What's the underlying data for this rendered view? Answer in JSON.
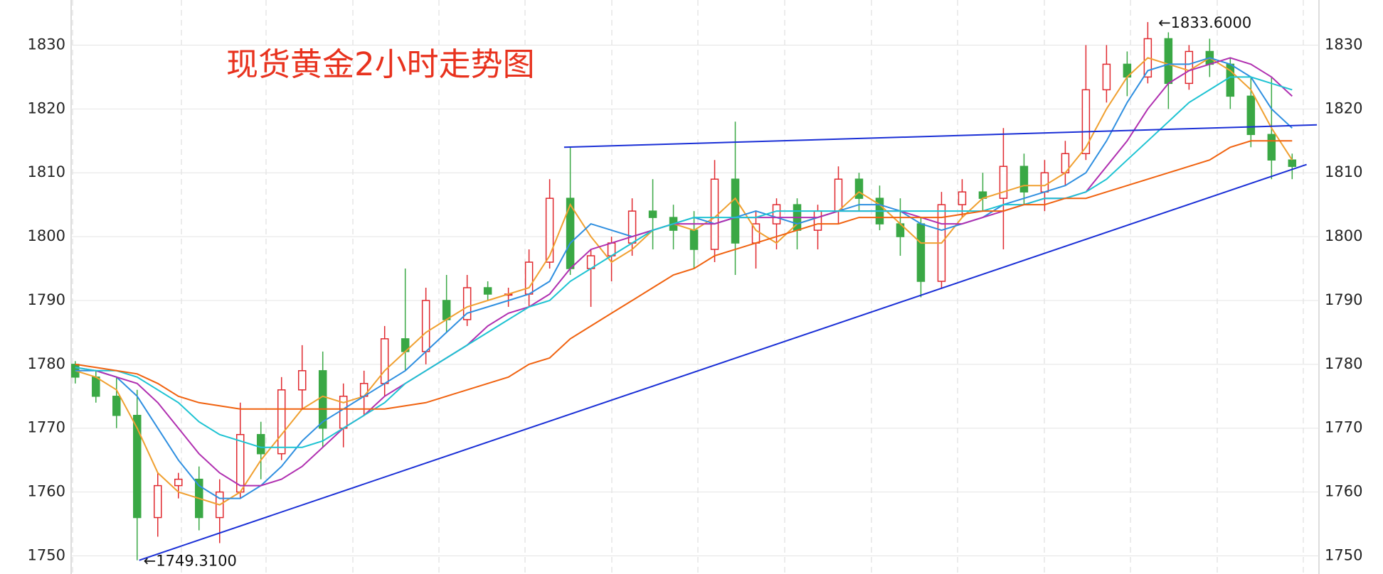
{
  "chart_data": {
    "type": "candlestick",
    "title": "现货黄金2小时走势图",
    "ylim": [
      1747.16,
      1837.06
    ],
    "yticks": [
      1750,
      1760,
      1770,
      1780,
      1790,
      1800,
      1810,
      1820,
      1830
    ],
    "xlim": [
      -0.2,
      60.3
    ],
    "grid": true,
    "up_color": "#e0282e",
    "down_color": "#3aa845",
    "candles": [
      [
        1780,
        1780.5,
        1777,
        1778
      ],
      [
        1778,
        1779,
        1774,
        1775
      ],
      [
        1775,
        1778,
        1770,
        1772
      ],
      [
        1772,
        1776,
        1749.31,
        1756
      ],
      [
        1756,
        1763,
        1753,
        1761
      ],
      [
        1761,
        1763,
        1759,
        1762
      ],
      [
        1762,
        1764,
        1754,
        1756
      ],
      [
        1756,
        1762,
        1752,
        1760
      ],
      [
        1760,
        1774,
        1759,
        1769
      ],
      [
        1769,
        1771,
        1762,
        1766
      ],
      [
        1766,
        1778,
        1765,
        1776
      ],
      [
        1776,
        1783,
        1773,
        1779
      ],
      [
        1779,
        1782,
        1767,
        1770
      ],
      [
        1770,
        1777,
        1767,
        1775
      ],
      [
        1775,
        1779,
        1772,
        1777
      ],
      [
        1777,
        1786,
        1775,
        1784
      ],
      [
        1784,
        1795,
        1779,
        1782
      ],
      [
        1782,
        1792,
        1780,
        1790
      ],
      [
        1790,
        1794,
        1785,
        1787
      ],
      [
        1787,
        1794,
        1786,
        1792
      ],
      [
        1792,
        1793,
        1790,
        1791
      ],
      [
        1791,
        1792,
        1789,
        1791
      ],
      [
        1791,
        1798,
        1789,
        1796
      ],
      [
        1796,
        1809,
        1795,
        1806
      ],
      [
        1806,
        1814,
        1794,
        1795
      ],
      [
        1795,
        1798,
        1789,
        1797
      ],
      [
        1797,
        1800,
        1793,
        1799
      ],
      [
        1799,
        1806,
        1797,
        1804
      ],
      [
        1804,
        1809,
        1798,
        1803
      ],
      [
        1803,
        1805,
        1798,
        1801
      ],
      [
        1801,
        1804,
        1795,
        1798
      ],
      [
        1798,
        1812,
        1796,
        1809
      ],
      [
        1809,
        1818,
        1794,
        1799
      ],
      [
        1799,
        1804,
        1795,
        1802
      ],
      [
        1802,
        1806,
        1798,
        1805
      ],
      [
        1805,
        1806,
        1798,
        1801
      ],
      [
        1801,
        1805,
        1798,
        1804
      ],
      [
        1804,
        1811,
        1802,
        1809
      ],
      [
        1809,
        1810,
        1804,
        1806
      ],
      [
        1806,
        1808,
        1801,
        1802
      ],
      [
        1802,
        1806,
        1797,
        1800
      ],
      [
        1802,
        1803,
        1790.5,
        1793
      ],
      [
        1793,
        1807,
        1792,
        1805
      ],
      [
        1805,
        1809,
        1803,
        1807
      ],
      [
        1807,
        1810,
        1804,
        1806
      ],
      [
        1806,
        1817,
        1798,
        1811
      ],
      [
        1811,
        1813,
        1805,
        1807
      ],
      [
        1807,
        1812,
        1804,
        1810
      ],
      [
        1810,
        1815,
        1808,
        1813
      ],
      [
        1813,
        1830,
        1812,
        1823
      ],
      [
        1823,
        1830,
        1821,
        1827
      ],
      [
        1827,
        1829,
        1822,
        1825
      ],
      [
        1825,
        1833.6,
        1824,
        1831
      ],
      [
        1831,
        1832,
        1820,
        1824
      ],
      [
        1824,
        1830,
        1823,
        1829
      ],
      [
        1829,
        1831,
        1825,
        1827
      ],
      [
        1827,
        1828,
        1820,
        1822
      ],
      [
        1822,
        1825,
        1814,
        1816
      ],
      [
        1816,
        1825,
        1809,
        1812
      ],
      [
        1812,
        1813,
        1809,
        1811
      ]
    ],
    "lines": [
      {
        "color": "#f0a030",
        "values": [
          1779,
          1778,
          1776,
          1770,
          1763,
          1760,
          1759,
          1758,
          1760,
          1765,
          1769,
          1773,
          1775,
          1774,
          1775,
          1779,
          1782,
          1785,
          1787,
          1789,
          1790,
          1791,
          1792,
          1797,
          1805,
          1800,
          1796,
          1798,
          1801,
          1802,
          1801,
          1803,
          1806,
          1801,
          1799,
          1802,
          1803,
          1804,
          1807,
          1805,
          1802,
          1799,
          1799,
          1803,
          1806,
          1807,
          1808,
          1808,
          1810,
          1814,
          1820,
          1825,
          1828,
          1827,
          1826,
          1828,
          1826,
          1823,
          1817,
          1812
        ]
      },
      {
        "color": "#2f8fe0",
        "values": [
          1779,
          1779,
          1778,
          1775,
          1770,
          1765,
          1761,
          1759,
          1759,
          1761,
          1764,
          1768,
          1771,
          1773,
          1775,
          1777,
          1779,
          1782,
          1785,
          1788,
          1789,
          1790,
          1791,
          1793,
          1799,
          1802,
          1801,
          1800,
          1801,
          1802,
          1803,
          1802,
          1803,
          1804,
          1803,
          1802,
          1803,
          1804,
          1805,
          1805,
          1804,
          1802,
          1801,
          1802,
          1803,
          1805,
          1806,
          1807,
          1808,
          1810,
          1815,
          1821,
          1826,
          1827,
          1827,
          1828,
          1827,
          1825,
          1820,
          1817
        ]
      },
      {
        "color": "#b02fb0",
        "values": [
          1779.5,
          1779,
          1778,
          1777,
          1774,
          1770,
          1766,
          1763,
          1761,
          1761,
          1762,
          1764,
          1767,
          1770,
          1772,
          1775,
          1777,
          1779,
          1781,
          1783,
          1786,
          1788,
          1789,
          1791,
          1795,
          1798,
          1799,
          1800,
          1801,
          1802,
          1802,
          1802,
          1803,
          1803,
          1803,
          1803,
          1803,
          1804,
          1804,
          1804,
          1804,
          1803,
          1802,
          1802,
          1803,
          1804,
          1805,
          1806,
          1806,
          1807,
          1811,
          1815,
          1820,
          1824,
          1826,
          1827,
          1828,
          1827,
          1825,
          1822
        ]
      },
      {
        "color": "#1ec3d2",
        "values": [
          1779.5,
          1779,
          1779,
          1778,
          1776,
          1774,
          1771,
          1769,
          1768,
          1767,
          1767,
          1767,
          1768,
          1770,
          1772,
          1774,
          1777,
          1779,
          1781,
          1783,
          1785,
          1787,
          1789,
          1790,
          1793,
          1795,
          1797,
          1799,
          1801,
          1802,
          1803,
          1803,
          1803,
          1803,
          1804,
          1804,
          1804,
          1804,
          1804,
          1804,
          1804,
          1804,
          1804,
          1804,
          1804,
          1805,
          1805,
          1806,
          1806,
          1807,
          1809,
          1812,
          1815,
          1818,
          1821,
          1823,
          1825,
          1825,
          1824,
          1823
        ]
      },
      {
        "color": "#f0620f",
        "values": [
          1780,
          1779.5,
          1779,
          1778.5,
          1777,
          1775,
          1774,
          1773.5,
          1773,
          1773,
          1773,
          1773,
          1773,
          1773,
          1773,
          1773,
          1773.5,
          1774,
          1775,
          1776,
          1777,
          1778,
          1780,
          1781,
          1784,
          1786,
          1788,
          1790,
          1792,
          1794,
          1795,
          1797,
          1798,
          1799,
          1800,
          1801,
          1802,
          1802,
          1803,
          1803,
          1803,
          1803,
          1803,
          1803.5,
          1804,
          1804,
          1805,
          1805,
          1806,
          1806,
          1807,
          1808,
          1809,
          1810,
          1811,
          1812,
          1814,
          1815,
          1815,
          1815
        ]
      }
    ],
    "trend_lines": [
      {
        "color": "#1a2fd6",
        "start": [
          23.7,
          1814
        ],
        "end": [
          60.2,
          1817.5
        ]
      },
      {
        "color": "#1a2fd6",
        "start": [
          3.1,
          1749.31
        ],
        "end": [
          59.7,
          1811.3
        ]
      }
    ],
    "annotations": [
      {
        "text": "←1833.6000",
        "x": 52.3,
        "y": 1833.6
      },
      {
        "text": "←1749.3100",
        "x": 3.1,
        "y": 1749.31
      }
    ]
  }
}
